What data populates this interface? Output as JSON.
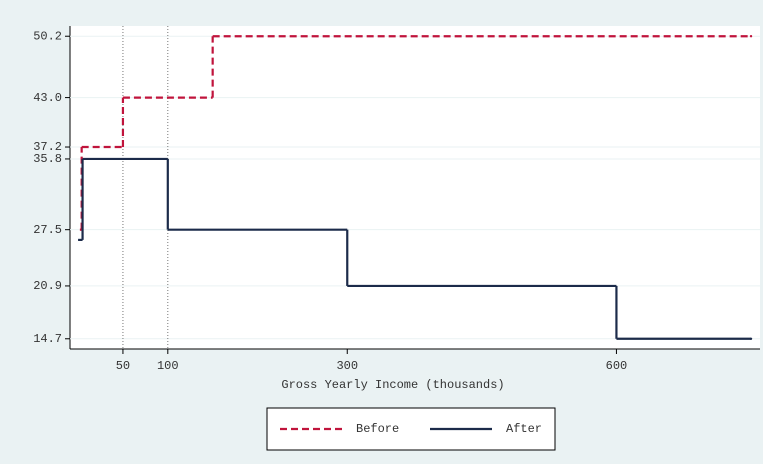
{
  "chart_data": {
    "type": "step",
    "x_label": "Gross Yearly Income (thousands)",
    "series": [
      {
        "name": "Before",
        "color": "#c0143c",
        "dash": true,
        "x": [
          2,
          4,
          50,
          150,
          750
        ],
        "values": [
          27.5,
          37.2,
          {
            "value": 43,
            "label": "43.0"
          },
          50.2,
          50.2
        ]
      },
      {
        "name": "After",
        "color": "#1c2b4a",
        "dash": false,
        "x": [
          0,
          5,
          100,
          300,
          600,
          750
        ],
        "values": [
          26.3,
          35.8,
          27.5,
          20.9,
          14.7,
          14.7
        ]
      }
    ],
    "xlim": [
      -9,
      760
    ],
    "ylim": [
      13.5,
      51.4
    ],
    "xticks": [
      50,
      100,
      300,
      600
    ],
    "yticks": [
      14.7,
      20.9,
      27.5,
      35.8,
      37.2,
      {
        "value": 43,
        "label": "43.0"
      },
      50.2
    ],
    "reference_lines_x": [
      50,
      100
    ],
    "grid": true,
    "legend": "bottom"
  }
}
